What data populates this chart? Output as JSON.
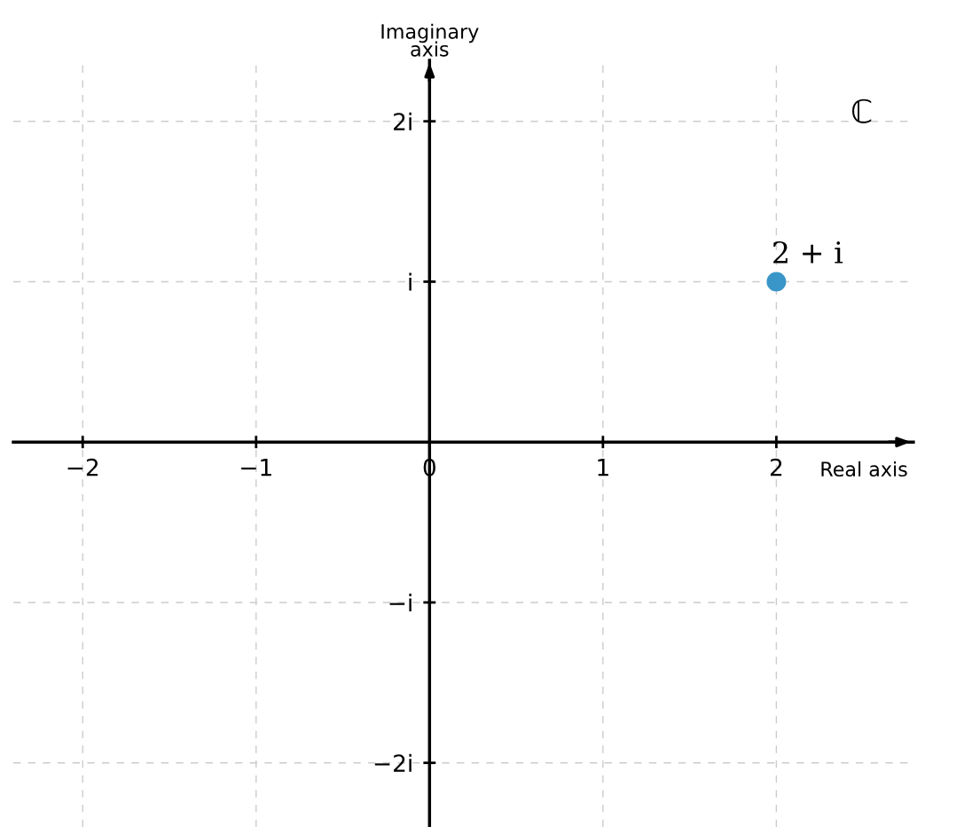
{
  "chart_data": {
    "type": "scatter",
    "xlabel": "Real axis",
    "ylabel": "Imaginary\naxis",
    "x": [
      2
    ],
    "series": [
      {
        "color": "#3a96c8",
        "values": [
          1
        ]
      }
    ],
    "annotations": [
      {
        "text": "2 + i",
        "x": 2,
        "y": 1
      },
      "ℂ"
    ],
    "xlim": [
      -2.4,
      2.79
    ],
    "ylim": [
      -2.4,
      2.38
    ],
    "xticks": [
      {
        "value": -2,
        "label": "−2"
      },
      {
        "value": -1,
        "label": "−1"
      },
      0,
      1,
      2
    ],
    "yticks": [
      {
        "value": -2,
        "label": "−2i"
      },
      {
        "value": -1,
        "label": "−i"
      },
      {
        "value": 1,
        "label": "i"
      },
      {
        "value": 2,
        "label": "2i"
      }
    ],
    "grid": true,
    "marker": "circle"
  }
}
